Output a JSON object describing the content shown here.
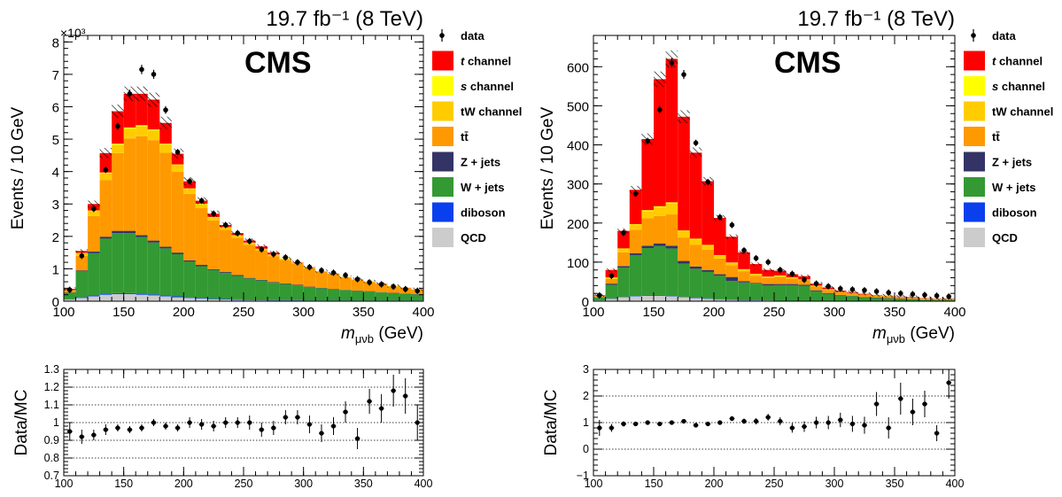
{
  "chart_data": [
    {
      "id": "left_main",
      "type": "bar",
      "stacked": true,
      "title": "",
      "lumi_text": "19.7 fb⁻¹ (8 TeV)",
      "experiment_label": "CMS",
      "xlabel": "m_{μνb} (GeV)",
      "ylabel": "Events / 10 GeV",
      "y_multiplier": "×10³",
      "xlim": [
        100,
        400
      ],
      "ylim": [
        0,
        8.2
      ],
      "xticks": [
        100,
        150,
        200,
        250,
        300,
        350,
        400
      ],
      "yticks": [
        0,
        1,
        2,
        3,
        4,
        5,
        6,
        7,
        8
      ],
      "bin_edges": [
        100,
        110,
        120,
        130,
        140,
        150,
        160,
        170,
        180,
        190,
        200,
        210,
        220,
        230,
        240,
        250,
        260,
        270,
        280,
        290,
        300,
        310,
        320,
        330,
        340,
        350,
        360,
        370,
        380,
        390,
        400
      ],
      "series": [
        {
          "name": "QCD",
          "color": "#cccccc",
          "values": [
            0.05,
            0.1,
            0.15,
            0.2,
            0.22,
            0.22,
            0.2,
            0.18,
            0.15,
            0.12,
            0.1,
            0.08,
            0.06,
            0.05,
            0.04,
            0.03,
            0.03,
            0.02,
            0.02,
            0.02,
            0.01,
            0.01,
            0.01,
            0.01,
            0.01,
            0.01,
            0.01,
            0.01,
            0.01,
            0.01
          ]
        },
        {
          "name": "diboson",
          "color": "#0a3fee",
          "values": [
            0.01,
            0.02,
            0.03,
            0.03,
            0.03,
            0.03,
            0.03,
            0.03,
            0.03,
            0.03,
            0.02,
            0.02,
            0.02,
            0.02,
            0.02,
            0.01,
            0.01,
            0.01,
            0.01,
            0.01,
            0.01,
            0.01,
            0.01,
            0.01,
            0.01,
            0.01,
            0.01,
            0.01,
            0.01,
            0.01
          ]
        },
        {
          "name": "W + jets",
          "color": "#339933",
          "values": [
            0.2,
            0.8,
            1.3,
            1.7,
            1.85,
            1.85,
            1.75,
            1.6,
            1.45,
            1.3,
            1.1,
            0.98,
            0.88,
            0.8,
            0.72,
            0.66,
            0.6,
            0.54,
            0.5,
            0.46,
            0.42,
            0.38,
            0.35,
            0.32,
            0.3,
            0.28,
            0.25,
            0.23,
            0.21,
            0.19
          ]
        },
        {
          "name": "Z + jets",
          "color": "#333366",
          "values": [
            0.01,
            0.03,
            0.05,
            0.06,
            0.07,
            0.07,
            0.06,
            0.06,
            0.05,
            0.05,
            0.04,
            0.04,
            0.03,
            0.03,
            0.03,
            0.02,
            0.02,
            0.02,
            0.02,
            0.02,
            0.01,
            0.01,
            0.01,
            0.01,
            0.01,
            0.01,
            0.01,
            0.01,
            0.01,
            0.01
          ]
        },
        {
          "name": "tt̄",
          "color": "#ff9900",
          "values": [
            0.05,
            0.45,
            1.1,
            1.75,
            2.4,
            2.85,
            3.05,
            3.1,
            2.9,
            2.5,
            2.05,
            1.75,
            1.5,
            1.3,
            1.15,
            1.02,
            0.9,
            0.8,
            0.72,
            0.64,
            0.56,
            0.5,
            0.44,
            0.38,
            0.33,
            0.28,
            0.24,
            0.2,
            0.17,
            0.14
          ]
        },
        {
          "name": "tW channel",
          "color": "#ffcc00",
          "values": [
            0.02,
            0.08,
            0.15,
            0.2,
            0.25,
            0.3,
            0.3,
            0.3,
            0.25,
            0.2,
            0.15,
            0.12,
            0.1,
            0.08,
            0.07,
            0.06,
            0.05,
            0.04,
            0.04,
            0.03,
            0.03,
            0.02,
            0.02,
            0.02,
            0.02,
            0.02,
            0.01,
            0.01,
            0.01,
            0.01
          ]
        },
        {
          "name": "s channel",
          "color": "#ffff00",
          "values": [
            0.0,
            0.01,
            0.02,
            0.03,
            0.04,
            0.04,
            0.04,
            0.03,
            0.03,
            0.02,
            0.02,
            0.02,
            0.01,
            0.01,
            0.01,
            0.01,
            0.01,
            0.01,
            0.01,
            0.01,
            0.0,
            0.0,
            0.0,
            0.0,
            0.0,
            0.0,
            0.0,
            0.0,
            0.0,
            0.0
          ]
        },
        {
          "name": "t channel",
          "color": "#ff0000",
          "values": [
            0.04,
            0.06,
            0.2,
            0.6,
            1.0,
            1.04,
            0.97,
            0.92,
            0.64,
            0.33,
            0.22,
            0.09,
            0.1,
            0.06,
            0.06,
            0.06,
            0.07,
            0.06,
            0.0,
            0.01,
            0.01,
            0.0,
            0.01,
            0.0,
            0.0,
            0.0,
            0.01,
            0.0,
            0.0,
            0.0
          ]
        }
      ],
      "data": {
        "name": "data",
        "values": [
          0.35,
          1.4,
          2.85,
          4.05,
          5.4,
          6.4,
          7.15,
          7.0,
          5.9,
          4.6,
          3.7,
          3.1,
          2.7,
          2.35,
          2.1,
          1.85,
          1.6,
          1.45,
          1.35,
          1.2,
          1.05,
          0.95,
          0.88,
          0.8,
          0.68,
          0.58,
          0.52,
          0.45,
          0.37,
          0.32
        ]
      },
      "legend": [
        {
          "label": "data",
          "kind": "marker"
        },
        {
          "label": "t channel",
          "color": "#ff0000",
          "italic_prefix": "t"
        },
        {
          "label": "s channel",
          "color": "#ffff00",
          "italic_prefix": "s"
        },
        {
          "label": "tW channel",
          "color": "#ffcc00"
        },
        {
          "label": "tt̄",
          "color": "#ff9900"
        },
        {
          "label": "Z + jets",
          "color": "#333366"
        },
        {
          "label": "W + jets",
          "color": "#339933"
        },
        {
          "label": "diboson",
          "color": "#0a3fee"
        },
        {
          "label": "QCD",
          "color": "#cccccc"
        }
      ]
    },
    {
      "id": "right_main",
      "type": "bar",
      "stacked": true,
      "title": "",
      "lumi_text": "19.7 fb⁻¹ (8 TeV)",
      "experiment_label": "CMS",
      "xlabel": "m_{μνb} (GeV)",
      "ylabel": "Events / 10 GeV",
      "xlim": [
        100,
        400
      ],
      "ylim": [
        0,
        680
      ],
      "xticks": [
        100,
        150,
        200,
        250,
        300,
        350,
        400
      ],
      "yticks": [
        0,
        100,
        200,
        300,
        400,
        500,
        600
      ],
      "bin_edges": [
        100,
        110,
        120,
        130,
        140,
        150,
        160,
        170,
        180,
        190,
        200,
        210,
        220,
        230,
        240,
        250,
        260,
        270,
        280,
        290,
        300,
        310,
        320,
        330,
        340,
        350,
        360,
        370,
        380,
        390,
        400
      ],
      "series": [
        {
          "name": "QCD",
          "color": "#cccccc",
          "values": [
            2,
            6,
            10,
            12,
            14,
            14,
            12,
            10,
            8,
            6,
            4,
            3,
            2,
            2,
            2,
            1,
            1,
            1,
            1,
            1,
            1,
            1,
            0,
            0,
            0,
            0,
            0,
            0,
            0,
            0
          ]
        },
        {
          "name": "diboson",
          "color": "#0a3fee",
          "values": [
            0,
            1,
            1,
            1,
            2,
            2,
            1,
            1,
            1,
            1,
            1,
            1,
            1,
            1,
            0,
            0,
            0,
            0,
            0,
            0,
            0,
            0,
            0,
            0,
            0,
            0,
            0,
            0,
            0,
            0
          ]
        },
        {
          "name": "W + jets",
          "color": "#339933",
          "values": [
            8,
            35,
            75,
            105,
            120,
            125,
            122,
            85,
            74,
            68,
            60,
            48,
            45,
            42,
            38,
            40,
            40,
            38,
            25,
            18,
            14,
            12,
            10,
            8,
            7,
            6,
            5,
            4,
            3,
            3
          ]
        },
        {
          "name": "Z + jets",
          "color": "#333366",
          "values": [
            0,
            3,
            4,
            5,
            6,
            7,
            7,
            7,
            6,
            5,
            4,
            10,
            3,
            2,
            4,
            3,
            3,
            3,
            2,
            2,
            1,
            1,
            1,
            1,
            1,
            1,
            1,
            0,
            0,
            0
          ]
        },
        {
          "name": "tt̄",
          "color": "#ff9900",
          "values": [
            2,
            12,
            35,
            60,
            70,
            70,
            80,
            60,
            55,
            52,
            40,
            30,
            25,
            18,
            15,
            18,
            14,
            12,
            10,
            8,
            7,
            6,
            5,
            5,
            4,
            3,
            3,
            2,
            2,
            2
          ]
        },
        {
          "name": "tW channel",
          "color": "#ffcc00",
          "values": [
            1,
            3,
            8,
            12,
            18,
            22,
            28,
            16,
            14,
            10,
            8,
            6,
            5,
            4,
            3,
            3,
            2,
            2,
            2,
            2,
            1,
            1,
            1,
            1,
            1,
            1,
            1,
            1,
            1,
            1
          ]
        },
        {
          "name": "s channel",
          "color": "#ffff00",
          "values": [
            0,
            1,
            2,
            2,
            3,
            3,
            3,
            2,
            2,
            2,
            1,
            1,
            1,
            1,
            1,
            1,
            1,
            0,
            0,
            0,
            0,
            0,
            0,
            0,
            0,
            0,
            0,
            0,
            0,
            0
          ]
        },
        {
          "name": "t channel",
          "color": "#ff0000",
          "values": [
            2,
            19,
            45,
            88,
            182,
            325,
            367,
            291,
            220,
            163,
            95,
            66,
            43,
            25,
            17,
            12,
            8,
            8,
            5,
            4,
            3,
            2,
            2,
            1,
            1,
            1,
            1,
            1,
            1,
            1
          ]
        }
      ],
      "data": {
        "name": "data",
        "values": [
          15,
          65,
          175,
          275,
          410,
          490,
          610,
          580,
          405,
          305,
          215,
          195,
          130,
          110,
          100,
          80,
          70,
          55,
          45,
          38,
          32,
          30,
          28,
          25,
          22,
          20,
          18,
          16,
          14,
          12
        ]
      },
      "legend": [
        {
          "label": "data",
          "kind": "marker"
        },
        {
          "label": "t channel",
          "color": "#ff0000",
          "italic_prefix": "t"
        },
        {
          "label": "s channel",
          "color": "#ffff00",
          "italic_prefix": "s"
        },
        {
          "label": "tW channel",
          "color": "#ffcc00"
        },
        {
          "label": "tt̄",
          "color": "#ff9900"
        },
        {
          "label": "Z + jets",
          "color": "#333366"
        },
        {
          "label": "W + jets",
          "color": "#339933"
        },
        {
          "label": "diboson",
          "color": "#0a3fee"
        },
        {
          "label": "QCD",
          "color": "#cccccc"
        }
      ]
    },
    {
      "id": "left_ratio",
      "type": "scatter",
      "title": "",
      "xlabel": "",
      "ylabel": "Data/MC",
      "xlim": [
        100,
        400
      ],
      "ylim": [
        0.7,
        1.3
      ],
      "xticks": [
        100,
        150,
        200,
        250,
        300,
        350,
        400
      ],
      "yticks": [
        0.7,
        0.8,
        0.9,
        1,
        1.1,
        1.2,
        1.3
      ],
      "x": [
        105,
        115,
        125,
        135,
        145,
        155,
        165,
        175,
        185,
        195,
        205,
        215,
        225,
        235,
        245,
        255,
        265,
        275,
        285,
        295,
        305,
        315,
        325,
        335,
        345,
        355,
        365,
        375,
        385,
        395
      ],
      "y": [
        0.95,
        0.92,
        0.93,
        0.96,
        0.97,
        0.96,
        0.97,
        1.0,
        0.98,
        0.97,
        1.0,
        0.99,
        0.98,
        1.0,
        1.0,
        1.0,
        0.96,
        0.97,
        1.03,
        1.03,
        0.99,
        0.94,
        0.98,
        1.06,
        0.91,
        1.12,
        1.08,
        1.18,
        1.15,
        1.0
      ],
      "yerr": [
        0.05,
        0.04,
        0.03,
        0.03,
        0.02,
        0.02,
        0.02,
        0.02,
        0.02,
        0.02,
        0.03,
        0.03,
        0.03,
        0.03,
        0.03,
        0.04,
        0.04,
        0.04,
        0.04,
        0.04,
        0.05,
        0.05,
        0.05,
        0.06,
        0.06,
        0.07,
        0.08,
        0.09,
        0.1,
        0.1
      ]
    },
    {
      "id": "right_ratio",
      "type": "scatter",
      "title": "",
      "xlabel": "",
      "ylabel": "Data/MC",
      "xlim": [
        100,
        400
      ],
      "ylim": [
        -1,
        3
      ],
      "xticks": [
        100,
        150,
        200,
        250,
        300,
        350,
        400
      ],
      "yticks": [
        -1,
        0,
        1,
        2,
        3
      ],
      "x": [
        105,
        115,
        125,
        135,
        145,
        155,
        165,
        175,
        185,
        195,
        205,
        215,
        225,
        235,
        245,
        255,
        265,
        275,
        285,
        295,
        305,
        315,
        325,
        335,
        345,
        355,
        365,
        375,
        385,
        395
      ],
      "y": [
        0.8,
        0.8,
        0.95,
        0.95,
        1.0,
        0.95,
        1.0,
        1.05,
        0.9,
        0.95,
        1.0,
        1.15,
        1.05,
        1.05,
        1.2,
        1.05,
        0.8,
        0.85,
        1.0,
        1.0,
        1.1,
        0.95,
        0.9,
        1.7,
        0.8,
        1.9,
        1.4,
        1.7,
        0.6,
        2.5
      ],
      "yerr": [
        0.3,
        0.15,
        0.1,
        0.08,
        0.06,
        0.05,
        0.05,
        0.05,
        0.06,
        0.07,
        0.08,
        0.09,
        0.1,
        0.12,
        0.13,
        0.15,
        0.18,
        0.2,
        0.22,
        0.25,
        0.27,
        0.3,
        0.32,
        0.45,
        0.4,
        0.6,
        0.5,
        0.5,
        0.3,
        0.6
      ]
    }
  ]
}
